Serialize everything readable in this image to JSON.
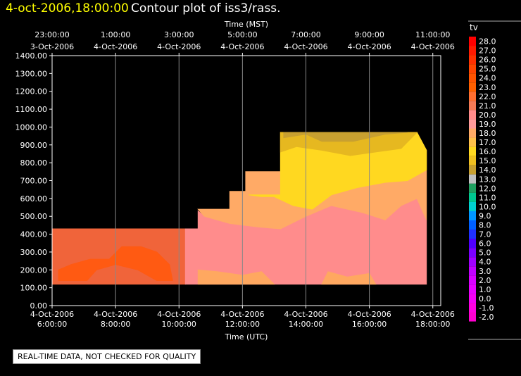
{
  "header": {
    "timestamp": "4-oct-2006,18:00:00",
    "title": "Contour plot of iss3/rass."
  },
  "footer": {
    "quality_note": "REAL-TIME DATA, NOT CHECKED FOR QUALITY"
  },
  "chart_data": {
    "type": "heatmap",
    "top_axis_label": "Time (MST)",
    "bottom_axis_label": "Time (UTC)",
    "x_range_utc_hours": [
      6.0,
      18.25
    ],
    "ylim": [
      0,
      1400
    ],
    "y_ticks": [
      "0.00",
      "100.00",
      "200.00",
      "300.00",
      "400.00",
      "500.00",
      "600.00",
      "700.00",
      "800.00",
      "900.00",
      "1000.00",
      "1100.00",
      "1200.00",
      "1300.00",
      "1400.00"
    ],
    "bottom_ticks": [
      {
        "t": 6,
        "date": "4-Oct-2006",
        "time": "6:00:00"
      },
      {
        "t": 8,
        "date": "4-Oct-2006",
        "time": "8:00:00"
      },
      {
        "t": 10,
        "date": "4-Oct-2006",
        "time": "10:00:00"
      },
      {
        "t": 12,
        "date": "4-Oct-2006",
        "time": "12:00:00"
      },
      {
        "t": 14,
        "date": "4-Oct-2006",
        "time": "14:00:00"
      },
      {
        "t": 16,
        "date": "4-Oct-2006",
        "time": "16:00:00"
      },
      {
        "t": 18,
        "date": "4-Oct-2006",
        "time": "18:00:00"
      }
    ],
    "top_ticks": [
      {
        "t": 6,
        "time": "23:00:00",
        "date": "3-Oct-2006"
      },
      {
        "t": 8,
        "time": "1:00:00",
        "date": "4-Oct-2006"
      },
      {
        "t": 10,
        "time": "3:00:00",
        "date": "4-Oct-2006"
      },
      {
        "t": 12,
        "time": "5:00:00",
        "date": "4-Oct-2006"
      },
      {
        "t": 14,
        "time": "7:00:00",
        "date": "4-Oct-2006"
      },
      {
        "t": 16,
        "time": "9:00:00",
        "date": "4-Oct-2006"
      },
      {
        "t": 18,
        "time": "11:00:00",
        "date": "4-Oct-2006"
      }
    ],
    "grid": true,
    "colorbar": {
      "label": "tv",
      "levels": [
        {
          "value": "28.0",
          "color": "#ff0000"
        },
        {
          "value": "27.0",
          "color": "#ff1a00"
        },
        {
          "value": "26.0",
          "color": "#ff3000"
        },
        {
          "value": "25.0",
          "color": "#ff4500"
        },
        {
          "value": "24.0",
          "color": "#ff5400"
        },
        {
          "value": "23.0",
          "color": "#ff6000"
        },
        {
          "value": "22.0",
          "color": "#ff6e30"
        },
        {
          "value": "21.0",
          "color": "#f47a55"
        },
        {
          "value": "20.0",
          "color": "#ff8a8a"
        },
        {
          "value": "19.0",
          "color": "#ff9a9a"
        },
        {
          "value": "18.0",
          "color": "#ffaa66"
        },
        {
          "value": "17.0",
          "color": "#ffc04a"
        },
        {
          "value": "16.0",
          "color": "#ffd820"
        },
        {
          "value": "15.0",
          "color": "#f0c020"
        },
        {
          "value": "14.0",
          "color": "#c8a030"
        },
        {
          "value": "13.0",
          "color": "#c0c0c0"
        },
        {
          "value": "12.0",
          "color": "#20a060"
        },
        {
          "value": "11.0",
          "color": "#00c890"
        },
        {
          "value": "10.0",
          "color": "#00d0d0"
        },
        {
          "value": "9.0",
          "color": "#0096ff"
        },
        {
          "value": "8.0",
          "color": "#0060ff"
        },
        {
          "value": "7.0",
          "color": "#2030ff"
        },
        {
          "value": "6.0",
          "color": "#5000ff"
        },
        {
          "value": "5.0",
          "color": "#7a00ff"
        },
        {
          "value": "4.0",
          "color": "#a000ff"
        },
        {
          "value": "3.0",
          "color": "#c000ff"
        },
        {
          "value": "2.0",
          "color": "#d800ff"
        },
        {
          "value": "1.0",
          "color": "#e800ff"
        },
        {
          "value": "0.0",
          "color": "#f400f4"
        },
        {
          "value": "-1.0",
          "color": "#ff00e0"
        },
        {
          "value": "-2.0",
          "color": "#ff00d0"
        }
      ]
    },
    "regions": [
      {
        "name": "tv-22-lower-layer",
        "color": "#f0643a",
        "points": [
          [
            6,
            120
          ],
          [
            10.2,
            120
          ],
          [
            10.2,
            430
          ],
          [
            6,
            430
          ]
        ]
      },
      {
        "name": "tv-23-core",
        "color": "#ff5a12",
        "points": [
          [
            6.2,
            140
          ],
          [
            7.1,
            140
          ],
          [
            7.4,
            200
          ],
          [
            8.0,
            230
          ],
          [
            8.7,
            200
          ],
          [
            9.3,
            140
          ],
          [
            9.8,
            140
          ],
          [
            9.7,
            230
          ],
          [
            9.3,
            300
          ],
          [
            8.8,
            330
          ],
          [
            8.2,
            330
          ],
          [
            7.8,
            260
          ],
          [
            7.2,
            260
          ],
          [
            6.6,
            230
          ],
          [
            6.2,
            200
          ]
        ]
      },
      {
        "name": "tv-19-mid-band",
        "color": "#ff8c8c",
        "points": [
          [
            10.2,
            120
          ],
          [
            17.8,
            120
          ],
          [
            17.8,
            480
          ],
          [
            17.5,
            600
          ],
          [
            17.0,
            560
          ],
          [
            16.5,
            480
          ],
          [
            15.8,
            520
          ],
          [
            14.8,
            560
          ],
          [
            14.0,
            500
          ],
          [
            13.2,
            430
          ],
          [
            12.5,
            440
          ],
          [
            11.6,
            460
          ],
          [
            10.8,
            500
          ],
          [
            10.6,
            530
          ],
          [
            10.6,
            430
          ],
          [
            10.2,
            430
          ]
        ]
      },
      {
        "name": "tv-18-low-patch",
        "color": "#ffa860",
        "points": [
          [
            10.6,
            120
          ],
          [
            13.0,
            120
          ],
          [
            12.6,
            190
          ],
          [
            12.0,
            170
          ],
          [
            11.2,
            190
          ],
          [
            10.6,
            200
          ]
        ]
      },
      {
        "name": "tv-18-right-patch",
        "color": "#ffa860",
        "points": [
          [
            14.5,
            120
          ],
          [
            16.2,
            120
          ],
          [
            16.0,
            180
          ],
          [
            15.3,
            160
          ],
          [
            14.7,
            190
          ]
        ]
      },
      {
        "name": "tv-18-upper-band",
        "color": "#ffaa66",
        "points": [
          [
            10.6,
            540
          ],
          [
            11.6,
            540
          ],
          [
            11.6,
            640
          ],
          [
            12.1,
            640
          ],
          [
            12.1,
            750
          ],
          [
            13.2,
            750
          ],
          [
            13.2,
            970
          ],
          [
            17.5,
            970
          ],
          [
            17.8,
            870
          ],
          [
            17.8,
            480
          ],
          [
            17.5,
            600
          ],
          [
            17.0,
            560
          ],
          [
            16.5,
            480
          ],
          [
            15.8,
            520
          ],
          [
            14.8,
            560
          ],
          [
            14.0,
            500
          ],
          [
            13.2,
            430
          ],
          [
            12.5,
            440
          ],
          [
            11.6,
            460
          ],
          [
            10.8,
            500
          ]
        ]
      },
      {
        "name": "tv-16-warm-cap",
        "color": "#ffd820",
        "points": [
          [
            12.2,
            620
          ],
          [
            13.2,
            620
          ],
          [
            13.2,
            970
          ],
          [
            17.5,
            970
          ],
          [
            17.8,
            870
          ],
          [
            17.8,
            760
          ],
          [
            17.2,
            700
          ],
          [
            16.5,
            690
          ],
          [
            15.6,
            660
          ],
          [
            14.8,
            620
          ],
          [
            14.2,
            540
          ],
          [
            13.6,
            560
          ],
          [
            13.0,
            610
          ],
          [
            12.6,
            610
          ]
        ]
      },
      {
        "name": "tv-15-top-band",
        "color": "#e6b820",
        "points": [
          [
            13.2,
            860
          ],
          [
            13.7,
            890
          ],
          [
            14.5,
            870
          ],
          [
            15.4,
            840
          ],
          [
            16.2,
            860
          ],
          [
            17.0,
            880
          ],
          [
            17.5,
            970
          ],
          [
            13.2,
            970
          ]
        ]
      },
      {
        "name": "tv-14-top-patch",
        "color": "#c8a030",
        "points": [
          [
            13.3,
            940
          ],
          [
            14.0,
            960
          ],
          [
            14.5,
            920
          ],
          [
            15.5,
            920
          ],
          [
            16.5,
            960
          ],
          [
            17.2,
            970
          ],
          [
            13.3,
            970
          ]
        ]
      }
    ]
  }
}
